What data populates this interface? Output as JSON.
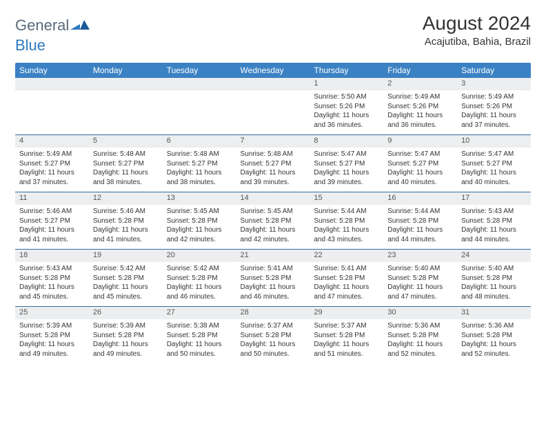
{
  "logo": {
    "word1": "General",
    "word2": "Blue"
  },
  "title": "August 2024",
  "location": "Acajutiba, Bahia, Brazil",
  "colors": {
    "header_bg": "#3b82c4",
    "header_text": "#ffffff",
    "row_divider": "#2f6fa8",
    "daynum_bg": "#eceeef",
    "text": "#333333",
    "logo_gray": "#5a6a7a",
    "logo_blue": "#2f7ac0"
  },
  "weekdays": [
    "Sunday",
    "Monday",
    "Tuesday",
    "Wednesday",
    "Thursday",
    "Friday",
    "Saturday"
  ],
  "weeks": [
    [
      null,
      null,
      null,
      null,
      {
        "n": "1",
        "sr": "Sunrise: 5:50 AM",
        "ss": "Sunset: 5:26 PM",
        "dl": "Daylight: 11 hours and 36 minutes."
      },
      {
        "n": "2",
        "sr": "Sunrise: 5:49 AM",
        "ss": "Sunset: 5:26 PM",
        "dl": "Daylight: 11 hours and 36 minutes."
      },
      {
        "n": "3",
        "sr": "Sunrise: 5:49 AM",
        "ss": "Sunset: 5:26 PM",
        "dl": "Daylight: 11 hours and 37 minutes."
      }
    ],
    [
      {
        "n": "4",
        "sr": "Sunrise: 5:49 AM",
        "ss": "Sunset: 5:27 PM",
        "dl": "Daylight: 11 hours and 37 minutes."
      },
      {
        "n": "5",
        "sr": "Sunrise: 5:48 AM",
        "ss": "Sunset: 5:27 PM",
        "dl": "Daylight: 11 hours and 38 minutes."
      },
      {
        "n": "6",
        "sr": "Sunrise: 5:48 AM",
        "ss": "Sunset: 5:27 PM",
        "dl": "Daylight: 11 hours and 38 minutes."
      },
      {
        "n": "7",
        "sr": "Sunrise: 5:48 AM",
        "ss": "Sunset: 5:27 PM",
        "dl": "Daylight: 11 hours and 39 minutes."
      },
      {
        "n": "8",
        "sr": "Sunrise: 5:47 AM",
        "ss": "Sunset: 5:27 PM",
        "dl": "Daylight: 11 hours and 39 minutes."
      },
      {
        "n": "9",
        "sr": "Sunrise: 5:47 AM",
        "ss": "Sunset: 5:27 PM",
        "dl": "Daylight: 11 hours and 40 minutes."
      },
      {
        "n": "10",
        "sr": "Sunrise: 5:47 AM",
        "ss": "Sunset: 5:27 PM",
        "dl": "Daylight: 11 hours and 40 minutes."
      }
    ],
    [
      {
        "n": "11",
        "sr": "Sunrise: 5:46 AM",
        "ss": "Sunset: 5:27 PM",
        "dl": "Daylight: 11 hours and 41 minutes."
      },
      {
        "n": "12",
        "sr": "Sunrise: 5:46 AM",
        "ss": "Sunset: 5:28 PM",
        "dl": "Daylight: 11 hours and 41 minutes."
      },
      {
        "n": "13",
        "sr": "Sunrise: 5:45 AM",
        "ss": "Sunset: 5:28 PM",
        "dl": "Daylight: 11 hours and 42 minutes."
      },
      {
        "n": "14",
        "sr": "Sunrise: 5:45 AM",
        "ss": "Sunset: 5:28 PM",
        "dl": "Daylight: 11 hours and 42 minutes."
      },
      {
        "n": "15",
        "sr": "Sunrise: 5:44 AM",
        "ss": "Sunset: 5:28 PM",
        "dl": "Daylight: 11 hours and 43 minutes."
      },
      {
        "n": "16",
        "sr": "Sunrise: 5:44 AM",
        "ss": "Sunset: 5:28 PM",
        "dl": "Daylight: 11 hours and 44 minutes."
      },
      {
        "n": "17",
        "sr": "Sunrise: 5:43 AM",
        "ss": "Sunset: 5:28 PM",
        "dl": "Daylight: 11 hours and 44 minutes."
      }
    ],
    [
      {
        "n": "18",
        "sr": "Sunrise: 5:43 AM",
        "ss": "Sunset: 5:28 PM",
        "dl": "Daylight: 11 hours and 45 minutes."
      },
      {
        "n": "19",
        "sr": "Sunrise: 5:42 AM",
        "ss": "Sunset: 5:28 PM",
        "dl": "Daylight: 11 hours and 45 minutes."
      },
      {
        "n": "20",
        "sr": "Sunrise: 5:42 AM",
        "ss": "Sunset: 5:28 PM",
        "dl": "Daylight: 11 hours and 46 minutes."
      },
      {
        "n": "21",
        "sr": "Sunrise: 5:41 AM",
        "ss": "Sunset: 5:28 PM",
        "dl": "Daylight: 11 hours and 46 minutes."
      },
      {
        "n": "22",
        "sr": "Sunrise: 5:41 AM",
        "ss": "Sunset: 5:28 PM",
        "dl": "Daylight: 11 hours and 47 minutes."
      },
      {
        "n": "23",
        "sr": "Sunrise: 5:40 AM",
        "ss": "Sunset: 5:28 PM",
        "dl": "Daylight: 11 hours and 47 minutes."
      },
      {
        "n": "24",
        "sr": "Sunrise: 5:40 AM",
        "ss": "Sunset: 5:28 PM",
        "dl": "Daylight: 11 hours and 48 minutes."
      }
    ],
    [
      {
        "n": "25",
        "sr": "Sunrise: 5:39 AM",
        "ss": "Sunset: 5:28 PM",
        "dl": "Daylight: 11 hours and 49 minutes."
      },
      {
        "n": "26",
        "sr": "Sunrise: 5:39 AM",
        "ss": "Sunset: 5:28 PM",
        "dl": "Daylight: 11 hours and 49 minutes."
      },
      {
        "n": "27",
        "sr": "Sunrise: 5:38 AM",
        "ss": "Sunset: 5:28 PM",
        "dl": "Daylight: 11 hours and 50 minutes."
      },
      {
        "n": "28",
        "sr": "Sunrise: 5:37 AM",
        "ss": "Sunset: 5:28 PM",
        "dl": "Daylight: 11 hours and 50 minutes."
      },
      {
        "n": "29",
        "sr": "Sunrise: 5:37 AM",
        "ss": "Sunset: 5:28 PM",
        "dl": "Daylight: 11 hours and 51 minutes."
      },
      {
        "n": "30",
        "sr": "Sunrise: 5:36 AM",
        "ss": "Sunset: 5:28 PM",
        "dl": "Daylight: 11 hours and 52 minutes."
      },
      {
        "n": "31",
        "sr": "Sunrise: 5:36 AM",
        "ss": "Sunset: 5:28 PM",
        "dl": "Daylight: 11 hours and 52 minutes."
      }
    ]
  ]
}
